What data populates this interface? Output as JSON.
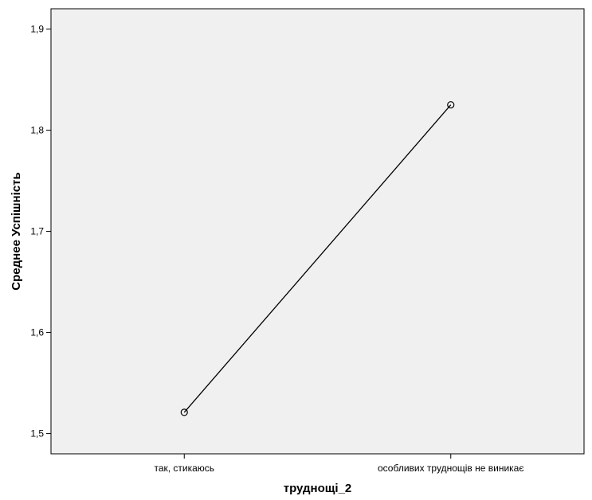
{
  "chart_data": {
    "type": "line",
    "title": "",
    "xlabel": "труднощі_2",
    "ylabel": "Среднее Успішність",
    "categories": [
      "так, стикаюсь",
      "особливих труднощів не виникає"
    ],
    "series": [
      {
        "values": [
          1.521,
          1.825
        ]
      }
    ],
    "ylim": [
      1.48,
      1.92
    ],
    "yticks": [
      1.5,
      1.6,
      1.7,
      1.8,
      1.9
    ],
    "ytick_labels": [
      "1,5",
      "1,6",
      "1,7",
      "1,8",
      "1,9"
    ],
    "grid": false,
    "legend": "none",
    "colors": {
      "plot_background": "#f0f0f0",
      "line": "#000000",
      "marker_edge": "#000000"
    }
  }
}
